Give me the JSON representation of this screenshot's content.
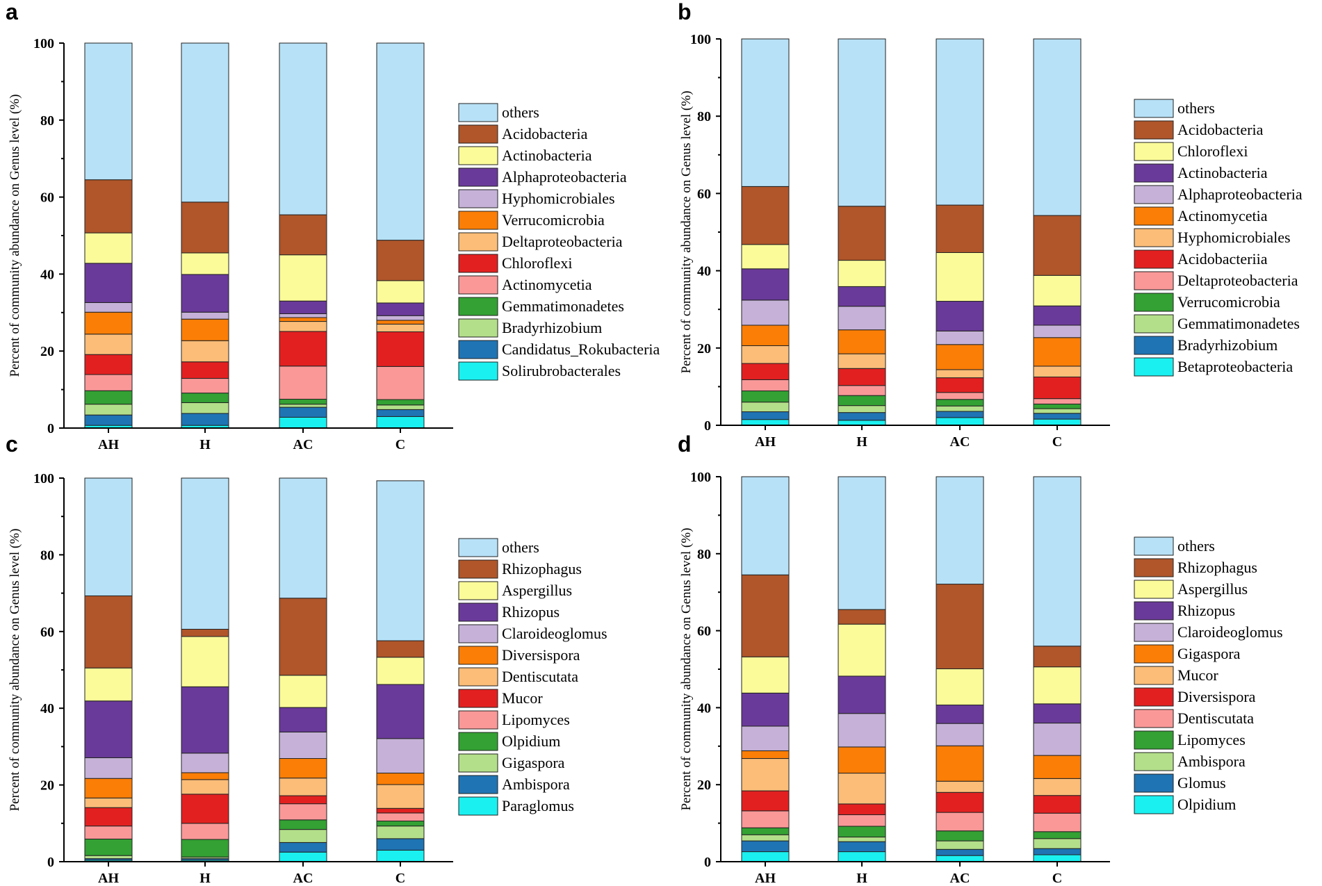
{
  "colors": {
    "others": "#b7e1f7",
    "brown": "#b0562a",
    "yellow": "#fbfb99",
    "purple": "#6a3a9a",
    "lilac": "#c6b2d8",
    "orange": "#fb7e06",
    "peach": "#fbbd78",
    "red": "#e32020",
    "pink": "#fa9898",
    "green": "#33a133",
    "lightgreen": "#b3df8a",
    "blue": "#1f74b4",
    "cyan": "#1af0f0"
  },
  "chart_data": [
    {
      "panel": "a",
      "type": "bar",
      "stacked": true,
      "ylabel": "Percent of community abundance on Genus level (%)",
      "ylim": [
        0,
        100
      ],
      "yticks": [
        "0",
        "20",
        "40",
        "60",
        "80",
        "100"
      ],
      "categories": [
        "AH",
        "H",
        "AC",
        "C"
      ],
      "series": [
        {
          "name": "Solirubrobacterales",
          "color": "cyan",
          "values": [
            0.7,
            0.7,
            2.8,
            3.0
          ]
        },
        {
          "name": "Candidatus_Rokubacteria",
          "color": "blue",
          "values": [
            2.7,
            3.1,
            2.6,
            1.8
          ]
        },
        {
          "name": "Bradyrhizobium",
          "color": "lightgreen",
          "values": [
            2.8,
            2.8,
            0.8,
            1.2
          ]
        },
        {
          "name": "Gemmatimonadetes",
          "color": "green",
          "values": [
            3.5,
            2.5,
            1.3,
            1.4
          ]
        },
        {
          "name": "Actinomycetia",
          "color": "pink",
          "values": [
            4.2,
            3.8,
            8.6,
            8.6
          ]
        },
        {
          "name": "Chloroflexi",
          "color": "red",
          "values": [
            5.2,
            4.3,
            9.0,
            9.0
          ]
        },
        {
          "name": "Deltaproteobacteria",
          "color": "peach",
          "values": [
            5.3,
            5.5,
            2.6,
            2.0
          ]
        },
        {
          "name": "Verrucomicrobia",
          "color": "orange",
          "values": [
            5.7,
            5.6,
            1.0,
            1.0
          ]
        },
        {
          "name": "Hyphomicrobiales",
          "color": "lilac",
          "values": [
            2.5,
            1.8,
            1.0,
            1.2
          ]
        },
        {
          "name": "Alphaproteobacteria",
          "color": "purple",
          "values": [
            10.2,
            9.8,
            3.3,
            3.3
          ]
        },
        {
          "name": "Actinobacteria",
          "color": "yellow",
          "values": [
            7.9,
            5.6,
            12.0,
            5.8
          ]
        },
        {
          "name": "Acidobacteria",
          "color": "brown",
          "values": [
            13.8,
            13.2,
            10.4,
            10.5
          ]
        },
        {
          "name": "others",
          "color": "others",
          "values": [
            35.5,
            41.3,
            44.6,
            51.2
          ]
        }
      ]
    },
    {
      "panel": "b",
      "type": "bar",
      "stacked": true,
      "ylabel": "Percent of community abundance on Genus level (%)",
      "ylim": [
        0,
        100
      ],
      "yticks": [
        "0",
        "20",
        "40",
        "60",
        "80",
        "100"
      ],
      "categories": [
        "AH",
        "H",
        "AC",
        "C"
      ],
      "series": [
        {
          "name": "Betaproteobacteria",
          "color": "cyan",
          "values": [
            1.5,
            1.3,
            2.0,
            1.6
          ]
        },
        {
          "name": "Bradyrhizobium",
          "color": "blue",
          "values": [
            2.0,
            2.0,
            1.6,
            1.5
          ]
        },
        {
          "name": "Gemmatimonadetes",
          "color": "lightgreen",
          "values": [
            2.5,
            1.8,
            1.4,
            1.2
          ]
        },
        {
          "name": "Verrucomicrobia",
          "color": "green",
          "values": [
            2.9,
            2.6,
            1.7,
            1.2
          ]
        },
        {
          "name": "Deltaproteobacteria",
          "color": "pink",
          "values": [
            2.9,
            2.6,
            1.8,
            1.4
          ]
        },
        {
          "name": "Acidobacteriia",
          "color": "red",
          "values": [
            4.2,
            4.4,
            3.8,
            5.6
          ]
        },
        {
          "name": "Hyphomicrobiales",
          "color": "peach",
          "values": [
            4.6,
            3.8,
            2.1,
            2.8
          ]
        },
        {
          "name": "Actinomycetia",
          "color": "orange",
          "values": [
            5.3,
            6.2,
            6.5,
            7.4
          ]
        },
        {
          "name": "Alphaproteobacteria",
          "color": "lilac",
          "values": [
            6.5,
            6.1,
            3.5,
            3.2
          ]
        },
        {
          "name": "Actinobacteria",
          "color": "purple",
          "values": [
            8.1,
            5.1,
            7.7,
            5.0
          ]
        },
        {
          "name": "Chloroflexi",
          "color": "yellow",
          "values": [
            6.3,
            6.8,
            12.6,
            7.9
          ]
        },
        {
          "name": "Acidobacteria",
          "color": "brown",
          "values": [
            15.0,
            14.0,
            12.3,
            15.5
          ]
        },
        {
          "name": "others",
          "color": "others",
          "values": [
            38.2,
            43.3,
            43.0,
            45.7
          ]
        }
      ]
    },
    {
      "panel": "c",
      "type": "bar",
      "stacked": true,
      "ylabel": "Percent of community abundance on Genus level (%)",
      "ylim": [
        0,
        100
      ],
      "yticks": [
        "0",
        "20",
        "40",
        "60",
        "80",
        "100"
      ],
      "categories": [
        "AH",
        "H",
        "AC",
        "C"
      ],
      "series": [
        {
          "name": "Paraglomus",
          "color": "cyan",
          "values": [
            0.4,
            0.4,
            2.5,
            3.0
          ]
        },
        {
          "name": "Ambispora",
          "color": "blue",
          "values": [
            0.4,
            0.4,
            2.5,
            3.0
          ]
        },
        {
          "name": "Gigaspora",
          "color": "lightgreen",
          "values": [
            0.8,
            0.4,
            3.4,
            3.3
          ]
        },
        {
          "name": "Olpidium",
          "color": "green",
          "values": [
            4.3,
            4.6,
            2.5,
            1.3
          ]
        },
        {
          "name": "Lipomyces",
          "color": "pink",
          "values": [
            3.4,
            4.2,
            4.2,
            2.1
          ]
        },
        {
          "name": "Mucor",
          "color": "red",
          "values": [
            4.8,
            7.6,
            2.1,
            1.2
          ]
        },
        {
          "name": "Dentiscutata",
          "color": "peach",
          "values": [
            2.5,
            3.8,
            4.6,
            6.2
          ]
        },
        {
          "name": "Diversispora",
          "color": "orange",
          "values": [
            5.1,
            1.8,
            5.1,
            3.0
          ]
        },
        {
          "name": "Claroideoglomus",
          "color": "lilac",
          "values": [
            5.4,
            5.1,
            6.9,
            9.0
          ]
        },
        {
          "name": "Rhizopus",
          "color": "purple",
          "values": [
            14.8,
            17.3,
            6.4,
            14.1
          ]
        },
        {
          "name": "Aspergillus",
          "color": "yellow",
          "values": [
            8.6,
            13.1,
            8.4,
            7.1
          ]
        },
        {
          "name": "Rhizophagus",
          "color": "brown",
          "values": [
            18.8,
            1.9,
            20.1,
            4.3
          ]
        },
        {
          "name": "others",
          "color": "others",
          "values": [
            30.7,
            39.4,
            31.3,
            41.7
          ]
        }
      ]
    },
    {
      "panel": "d",
      "type": "bar",
      "stacked": true,
      "ylabel": "Percent of community abundance on Genus level (%)",
      "ylim": [
        0,
        100
      ],
      "yticks": [
        "0",
        "20",
        "40",
        "60",
        "80",
        "100"
      ],
      "categories": [
        "AH",
        "H",
        "AC",
        "C"
      ],
      "series": [
        {
          "name": "Olpidium",
          "color": "cyan",
          "values": [
            2.6,
            2.6,
            1.6,
            1.8
          ]
        },
        {
          "name": "Glomus",
          "color": "blue",
          "values": [
            2.8,
            2.6,
            1.6,
            1.6
          ]
        },
        {
          "name": "Ambispora",
          "color": "lightgreen",
          "values": [
            1.6,
            1.2,
            2.2,
            2.6
          ]
        },
        {
          "name": "Lipomyces",
          "color": "green",
          "values": [
            1.8,
            2.8,
            2.6,
            1.8
          ]
        },
        {
          "name": "Dentiscutata",
          "color": "pink",
          "values": [
            4.4,
            3.0,
            4.8,
            4.8
          ]
        },
        {
          "name": "Diversispora",
          "color": "red",
          "values": [
            5.2,
            2.8,
            5.2,
            4.6
          ]
        },
        {
          "name": "Mucor",
          "color": "peach",
          "values": [
            8.4,
            8.0,
            2.9,
            4.4
          ]
        },
        {
          "name": "Gigaspora",
          "color": "orange",
          "values": [
            2.0,
            6.8,
            9.2,
            6.0
          ]
        },
        {
          "name": "Claroideoglomus",
          "color": "lilac",
          "values": [
            6.4,
            8.7,
            5.8,
            8.4
          ]
        },
        {
          "name": "Rhizopus",
          "color": "purple",
          "values": [
            8.6,
            9.7,
            4.8,
            5.0
          ]
        },
        {
          "name": "Aspergillus",
          "color": "yellow",
          "values": [
            9.4,
            13.5,
            9.4,
            9.6
          ]
        },
        {
          "name": "Rhizophagus",
          "color": "brown",
          "values": [
            21.3,
            3.8,
            22.0,
            5.4
          ]
        },
        {
          "name": "others",
          "color": "others",
          "values": [
            25.5,
            34.5,
            27.9,
            44.0
          ]
        }
      ]
    }
  ]
}
